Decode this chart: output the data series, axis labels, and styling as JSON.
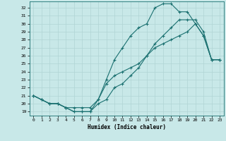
{
  "xlabel": "Humidex (Indice chaleur)",
  "ylabel": "",
  "bg_color": "#c8e8e8",
  "grid_color": "#b0d4d4",
  "line_color": "#1a7070",
  "xlim": [
    -0.5,
    23.5
  ],
  "ylim": [
    18.5,
    32.8
  ],
  "xticks": [
    0,
    1,
    2,
    3,
    4,
    5,
    6,
    7,
    8,
    9,
    10,
    11,
    12,
    13,
    14,
    15,
    16,
    17,
    18,
    19,
    20,
    21,
    22,
    23
  ],
  "yticks": [
    19,
    20,
    21,
    22,
    23,
    24,
    25,
    26,
    27,
    28,
    29,
    30,
    31,
    32
  ],
  "line1_x": [
    0,
    1,
    2,
    3,
    4,
    5,
    6,
    7,
    8,
    9,
    10,
    11,
    12,
    13,
    14,
    15,
    16,
    17,
    18,
    19,
    20,
    21,
    22,
    23
  ],
  "line1_y": [
    21.0,
    20.5,
    20.0,
    20.0,
    19.5,
    19.0,
    19.0,
    19.0,
    20.0,
    20.5,
    22.0,
    22.5,
    23.5,
    24.5,
    26.0,
    27.0,
    27.5,
    28.0,
    28.5,
    29.0,
    30.0,
    28.5,
    25.5,
    25.5
  ],
  "line2_x": [
    0,
    1,
    2,
    3,
    4,
    5,
    6,
    7,
    8,
    9,
    10,
    11,
    12,
    13,
    14,
    15,
    16,
    17,
    18,
    19,
    20,
    21,
    22,
    23
  ],
  "line2_y": [
    21.0,
    20.5,
    20.0,
    20.0,
    19.5,
    19.0,
    19.0,
    19.0,
    20.5,
    23.0,
    25.5,
    27.0,
    28.5,
    29.5,
    30.0,
    32.0,
    32.5,
    32.5,
    31.5,
    31.5,
    30.0,
    28.5,
    25.5,
    25.5
  ],
  "line3_x": [
    0,
    1,
    2,
    3,
    4,
    5,
    6,
    7,
    8,
    9,
    10,
    11,
    12,
    13,
    14,
    15,
    16,
    17,
    18,
    19,
    20,
    21,
    22,
    23
  ],
  "line3_y": [
    21.0,
    20.5,
    20.0,
    20.0,
    19.5,
    19.5,
    19.5,
    19.5,
    20.5,
    22.5,
    23.5,
    24.0,
    24.5,
    25.0,
    26.0,
    27.5,
    28.5,
    29.5,
    30.5,
    30.5,
    30.5,
    29.0,
    25.5,
    25.5
  ],
  "marker": "+",
  "markersize": 3,
  "linewidth": 0.8,
  "tick_fontsize": 4.5,
  "xlabel_fontsize": 5.5
}
